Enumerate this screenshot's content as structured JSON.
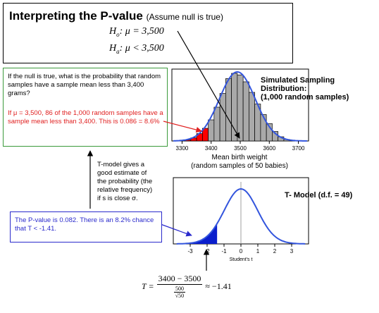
{
  "title": {
    "main": "Interpreting the P-value",
    "note": "(Assume null is true)"
  },
  "hypotheses": {
    "null_lhs": "H",
    "null_sub": "o",
    "null_rhs": ": μ = 3,500",
    "alt_lhs": "H",
    "alt_sub": "a",
    "alt_rhs": ": μ < 3,500"
  },
  "question": {
    "text": "If the null is true, what is the probability that random samples have a sample mean less than 3,400 grams?",
    "answer": "If μ = 3,500, 86 of the 1,000 random samples have a sample mean less than 3,400. This is 0.086 = 8.6%"
  },
  "simulated": {
    "label": "Simulated Sampling\nDistribution:\n(1,000 random samples)",
    "xlabel": "Mean birth weight\n(random samples of 50 babies)"
  },
  "tmodel_note": "T-model gives a good estimate of the probability (the relative frequency) if s is close σ.",
  "t_model": {
    "label": "T- Model  (d.f. = 49)",
    "xlabel": "Student's t"
  },
  "pvalue": {
    "text": "The P-value is 0.082. There is an 8.2% chance that T < -1.41."
  },
  "formula": {
    "lhs": "T =",
    "numerator": "3400 − 3500",
    "den_top": "500",
    "den_bottom": "√50",
    "rhs": "≈ −1.41"
  },
  "colors": {
    "histogram_bar": "#a9a9a9",
    "histogram_tail": "#ff0000",
    "curve": "#3355dd",
    "t_tail": "#0a1ecc",
    "green_border": "#3b9a3b",
    "red_text": "#e02020",
    "blue_text": "#2a2acc"
  },
  "chart_data": [
    {
      "type": "bar",
      "title": "",
      "xlabel": "Mean birth weight (random samples of 50 babies)",
      "ylabel": "",
      "x_ticks": [
        "3300",
        "3400",
        "3500",
        "3600",
        "3700"
      ],
      "xlim": [
        3265,
        3735
      ],
      "bin_width": 20,
      "bins_left": [
        3310,
        3330,
        3350,
        3370,
        3390,
        3410,
        3430,
        3450,
        3470,
        3490,
        3510,
        3530,
        3550,
        3570,
        3590,
        3610,
        3630,
        3650
      ],
      "counts": [
        2,
        6,
        14,
        24,
        40,
        64,
        90,
        118,
        128,
        125,
        112,
        92,
        70,
        50,
        33,
        18,
        8,
        3
      ],
      "tail_below": 3400,
      "overlay": "normal curve"
    },
    {
      "type": "area",
      "title": "",
      "xlabel": "Student's t",
      "ylabel": "",
      "df": 49,
      "x_ticks": [
        -3,
        -2,
        -1,
        0,
        1,
        2,
        3
      ],
      "xlim": [
        -4,
        4
      ],
      "shaded_below": -1.41,
      "p_value": 0.082
    }
  ]
}
